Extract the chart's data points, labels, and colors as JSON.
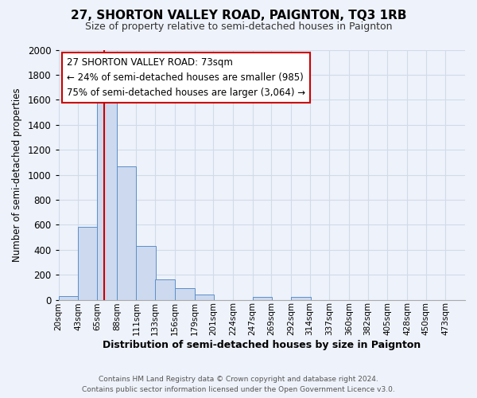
{
  "title": "27, SHORTON VALLEY ROAD, PAIGNTON, TQ3 1RB",
  "subtitle": "Size of property relative to semi-detached houses in Paignton",
  "xlabel": "Distribution of semi-detached houses by size in Paignton",
  "ylabel": "Number of semi-detached properties",
  "footer_line1": "Contains HM Land Registry data © Crown copyright and database right 2024.",
  "footer_line2": "Contains public sector information licensed under the Open Government Licence v3.0.",
  "bar_left_edges": [
    20,
    43,
    65,
    88,
    111,
    133,
    156,
    179,
    201,
    224,
    247,
    269,
    292,
    314,
    337,
    360,
    382,
    405,
    428,
    450
  ],
  "bar_heights": [
    30,
    580,
    1680,
    1070,
    430,
    160,
    90,
    40,
    0,
    0,
    25,
    0,
    25,
    0,
    0,
    0,
    0,
    0,
    0,
    0
  ],
  "bin_width": 23,
  "bar_color": "#ccd9ee",
  "bar_edge_color": "#5b8fc9",
  "tick_labels": [
    "20sqm",
    "43sqm",
    "65sqm",
    "88sqm",
    "111sqm",
    "133sqm",
    "156sqm",
    "179sqm",
    "201sqm",
    "224sqm",
    "247sqm",
    "269sqm",
    "292sqm",
    "314sqm",
    "337sqm",
    "360sqm",
    "382sqm",
    "405sqm",
    "428sqm",
    "450sqm",
    "473sqm"
  ],
  "ylim": [
    0,
    2000
  ],
  "yticks": [
    0,
    200,
    400,
    600,
    800,
    1000,
    1200,
    1400,
    1600,
    1800,
    2000
  ],
  "property_size": 73,
  "red_line_color": "#cc0000",
  "annotation_text_line1": "27 SHORTON VALLEY ROAD: 73sqm",
  "annotation_text_line2": "← 24% of semi-detached houses are smaller (985)",
  "annotation_text_line3": "75% of semi-detached houses are larger (3,064) →",
  "annotation_box_color": "#ffffff",
  "annotation_box_edge": "#cc0000",
  "grid_color": "#d0dce8",
  "background_color": "#eef2fa",
  "title_fontsize": 11,
  "subtitle_fontsize": 9
}
